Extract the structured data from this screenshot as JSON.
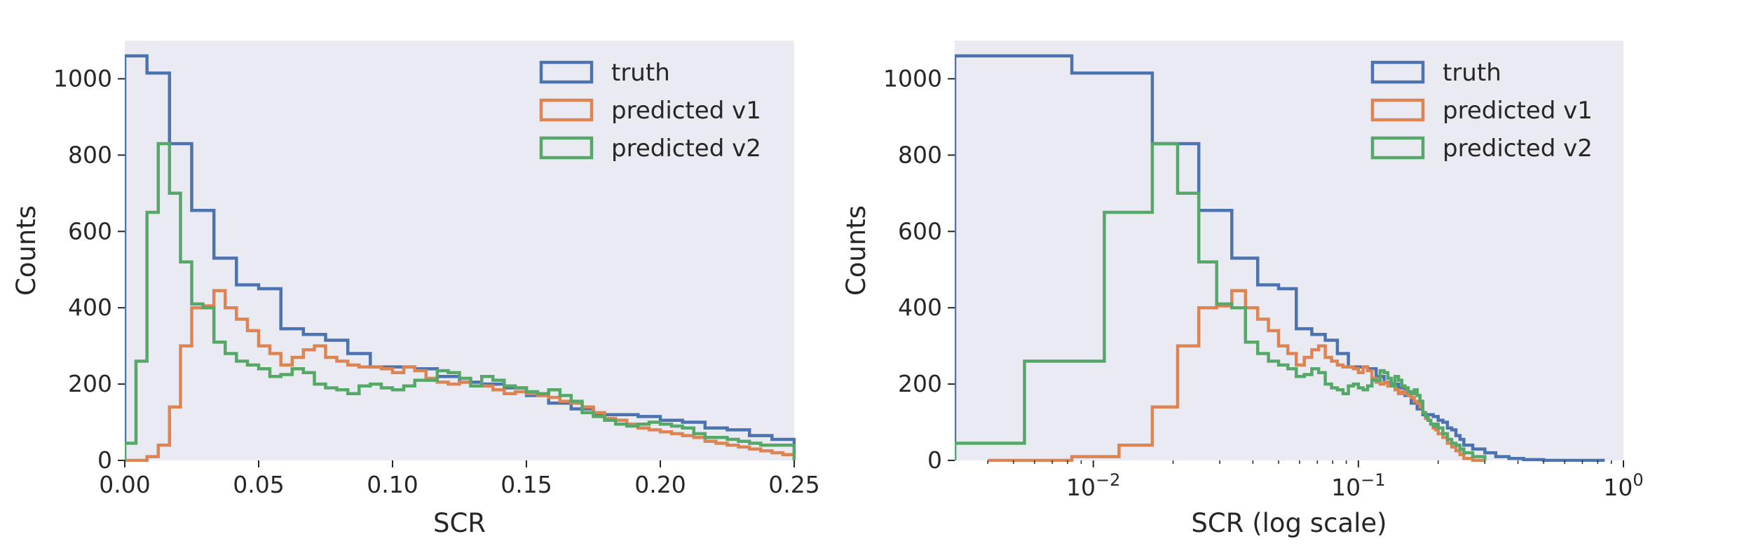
{
  "chart_data": [
    {
      "type": "histogram",
      "xlabel": "SCR",
      "ylabel": "Counts",
      "xscale": "linear",
      "xlim": [
        0,
        0.25
      ],
      "ylim": [
        0,
        1100
      ],
      "xticks": [
        0,
        0.05,
        0.1,
        0.15,
        0.2,
        0.25
      ],
      "xtick_labels": [
        "0.00",
        "0.05",
        "0.10",
        "0.15",
        "0.20",
        "0.25"
      ],
      "yticks": [
        0,
        200,
        400,
        600,
        800,
        1000
      ],
      "ytick_labels": [
        "0",
        "200",
        "400",
        "600",
        "800",
        "1000"
      ],
      "grid": false,
      "legend_position": "top-right",
      "series": [
        {
          "name": "truth",
          "color": "#4c72b0",
          "edges": [
            0,
            0.0083,
            0.0167,
            0.025,
            0.0333,
            0.0417,
            0.05,
            0.0583,
            0.0667,
            0.075,
            0.0833,
            0.0917,
            0.1,
            0.1083,
            0.1167,
            0.125,
            0.1333,
            0.1417,
            0.15,
            0.1583,
            0.1667,
            0.175,
            0.1833,
            0.1917,
            0.2,
            0.2083,
            0.2167,
            0.225,
            0.2333,
            0.2417,
            0.25
          ],
          "counts": [
            1060,
            1015,
            830,
            655,
            530,
            460,
            450,
            345,
            330,
            315,
            280,
            245,
            245,
            240,
            220,
            205,
            200,
            190,
            170,
            150,
            135,
            120,
            120,
            115,
            105,
            100,
            85,
            80,
            65,
            55
          ]
        },
        {
          "name": "predicted v1",
          "color": "#dd8452",
          "edges": [
            0,
            0.0042,
            0.0083,
            0.0125,
            0.0167,
            0.0208,
            0.025,
            0.0292,
            0.0333,
            0.0375,
            0.0417,
            0.0458,
            0.05,
            0.0542,
            0.0583,
            0.0625,
            0.0667,
            0.0708,
            0.075,
            0.0792,
            0.0833,
            0.0875,
            0.0917,
            0.0958,
            0.1,
            0.1042,
            0.1083,
            0.1125,
            0.1167,
            0.1208,
            0.125,
            0.1292,
            0.1333,
            0.1375,
            0.1417,
            0.1458,
            0.15,
            0.1542,
            0.1583,
            0.1625,
            0.1667,
            0.1708,
            0.175,
            0.1792,
            0.1833,
            0.1875,
            0.1917,
            0.1958,
            0.2,
            0.2042,
            0.2083,
            0.2125,
            0.2167,
            0.2208,
            0.225,
            0.2292,
            0.2333,
            0.2375,
            0.2417,
            0.2458,
            0.25
          ],
          "counts": [
            0,
            0,
            10,
            40,
            140,
            300,
            400,
            405,
            445,
            400,
            370,
            340,
            300,
            280,
            250,
            270,
            290,
            300,
            270,
            260,
            250,
            245,
            245,
            240,
            230,
            245,
            235,
            215,
            205,
            200,
            205,
            195,
            195,
            185,
            175,
            180,
            175,
            170,
            165,
            155,
            150,
            140,
            125,
            110,
            105,
            95,
            85,
            80,
            75,
            70,
            65,
            60,
            50,
            45,
            40,
            35,
            30,
            25,
            20,
            15
          ]
        },
        {
          "name": "predicted v2",
          "color": "#55a868",
          "edges": [
            0,
            0.0042,
            0.0083,
            0.0125,
            0.0167,
            0.0208,
            0.025,
            0.0292,
            0.0333,
            0.0375,
            0.0417,
            0.0458,
            0.05,
            0.0542,
            0.0583,
            0.0625,
            0.0667,
            0.0708,
            0.075,
            0.0792,
            0.0833,
            0.0875,
            0.0917,
            0.0958,
            0.1,
            0.1042,
            0.1083,
            0.1125,
            0.1167,
            0.1208,
            0.125,
            0.1292,
            0.1333,
            0.1375,
            0.1417,
            0.1458,
            0.15,
            0.1542,
            0.1583,
            0.1625,
            0.1667,
            0.1708,
            0.175,
            0.1792,
            0.1833,
            0.1875,
            0.1917,
            0.1958,
            0.2,
            0.2042,
            0.2083,
            0.2125,
            0.2167,
            0.2208,
            0.225,
            0.2292,
            0.2333,
            0.2375,
            0.2417,
            0.2458,
            0.25
          ],
          "counts": [
            45,
            260,
            650,
            830,
            700,
            520,
            410,
            400,
            310,
            280,
            260,
            250,
            240,
            220,
            225,
            240,
            230,
            200,
            190,
            185,
            175,
            195,
            200,
            190,
            185,
            195,
            210,
            210,
            235,
            230,
            215,
            195,
            220,
            210,
            195,
            190,
            180,
            175,
            185,
            170,
            155,
            125,
            115,
            105,
            95,
            90,
            95,
            100,
            95,
            90,
            85,
            70,
            60,
            60,
            55,
            50,
            45,
            40,
            40,
            40
          ]
        }
      ]
    },
    {
      "type": "histogram",
      "xlabel": "SCR (log scale)",
      "ylabel": "Counts",
      "xscale": "log",
      "xlim": [
        0.003,
        1.0
      ],
      "ylim": [
        0,
        1100
      ],
      "xticks": [
        0.01,
        0.1,
        1.0
      ],
      "xtick_labels": [
        {
          "base": "10",
          "exp": "−2"
        },
        {
          "base": "10",
          "exp": "−1"
        },
        {
          "base": "10",
          "exp": "0"
        }
      ],
      "yticks": [
        0,
        200,
        400,
        600,
        800,
        1000
      ],
      "ytick_labels": [
        "0",
        "200",
        "400",
        "600",
        "800",
        "1000"
      ],
      "grid": false,
      "legend_position": "top-right",
      "series": [
        {
          "name": "truth",
          "color": "#4c72b0",
          "edges": [
            0.003,
            0.0083,
            0.0167,
            0.025,
            0.0333,
            0.0417,
            0.05,
            0.0583,
            0.0667,
            0.075,
            0.0833,
            0.0917,
            0.1,
            0.1083,
            0.1167,
            0.125,
            0.1333,
            0.1417,
            0.15,
            0.1583,
            0.1667,
            0.175,
            0.1833,
            0.1917,
            0.2,
            0.2083,
            0.2167,
            0.225,
            0.2333,
            0.2417,
            0.25,
            0.27,
            0.3,
            0.33,
            0.37,
            0.42,
            0.5,
            0.85
          ],
          "counts": [
            1060,
            1015,
            830,
            655,
            530,
            460,
            450,
            345,
            330,
            315,
            280,
            245,
            245,
            240,
            220,
            205,
            200,
            190,
            170,
            150,
            135,
            120,
            120,
            115,
            105,
            100,
            85,
            80,
            65,
            55,
            40,
            30,
            20,
            10,
            5,
            2,
            0
          ]
        },
        {
          "name": "predicted v1",
          "color": "#dd8452",
          "edges": [
            0.004,
            0.0083,
            0.0125,
            0.0167,
            0.0208,
            0.025,
            0.0292,
            0.0333,
            0.0375,
            0.0417,
            0.0458,
            0.05,
            0.0542,
            0.0583,
            0.0625,
            0.0667,
            0.0708,
            0.075,
            0.0792,
            0.0833,
            0.0875,
            0.0917,
            0.0958,
            0.1,
            0.1042,
            0.1083,
            0.1125,
            0.1167,
            0.1208,
            0.125,
            0.1292,
            0.1333,
            0.1375,
            0.1417,
            0.1458,
            0.15,
            0.1542,
            0.1583,
            0.1625,
            0.1667,
            0.1708,
            0.175,
            0.1792,
            0.1833,
            0.1875,
            0.1917,
            0.1958,
            0.2,
            0.2083,
            0.2167,
            0.225,
            0.2333,
            0.2417,
            0.25,
            0.27,
            0.3
          ],
          "counts": [
            0,
            10,
            40,
            140,
            300,
            400,
            405,
            445,
            400,
            370,
            340,
            300,
            280,
            250,
            270,
            290,
            300,
            270,
            260,
            250,
            245,
            245,
            240,
            230,
            245,
            235,
            215,
            205,
            200,
            205,
            195,
            195,
            185,
            175,
            180,
            175,
            170,
            165,
            155,
            150,
            140,
            125,
            110,
            105,
            95,
            85,
            80,
            70,
            60,
            45,
            35,
            25,
            15,
            5,
            0
          ]
        },
        {
          "name": "predicted v2",
          "color": "#55a868",
          "edges": [
            0.003,
            0.0055,
            0.011,
            0.0167,
            0.0208,
            0.025,
            0.0292,
            0.0333,
            0.0375,
            0.0417,
            0.0458,
            0.05,
            0.0542,
            0.0583,
            0.0625,
            0.0667,
            0.0708,
            0.075,
            0.0792,
            0.0833,
            0.0875,
            0.0917,
            0.0958,
            0.1,
            0.1042,
            0.1083,
            0.1125,
            0.1167,
            0.1208,
            0.125,
            0.1292,
            0.1333,
            0.1375,
            0.1417,
            0.1458,
            0.15,
            0.1542,
            0.1583,
            0.1625,
            0.1667,
            0.1708,
            0.175,
            0.1792,
            0.1833,
            0.1875,
            0.1917,
            0.1958,
            0.2,
            0.2083,
            0.2167,
            0.225,
            0.2333,
            0.2417,
            0.25,
            0.27,
            0.3
          ],
          "counts": [
            45,
            260,
            650,
            830,
            700,
            520,
            410,
            400,
            310,
            280,
            260,
            250,
            240,
            220,
            225,
            240,
            230,
            200,
            190,
            185,
            175,
            195,
            200,
            190,
            185,
            195,
            210,
            210,
            235,
            230,
            215,
            195,
            220,
            210,
            195,
            190,
            180,
            175,
            185,
            170,
            155,
            125,
            115,
            105,
            95,
            90,
            95,
            85,
            70,
            55,
            45,
            40,
            30,
            20,
            10
          ]
        }
      ]
    }
  ]
}
